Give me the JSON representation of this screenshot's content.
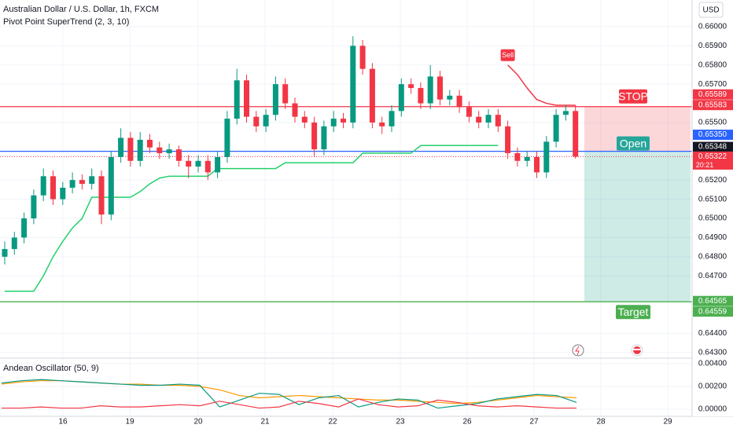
{
  "header": {
    "symbol": "Australian Dollar / U.S. Dollar, 1h, FXCM",
    "indicator": "Pivot Point SuperTrend (2, 3, 10)",
    "currency": "USD"
  },
  "chart_data": {
    "type": "candlestick",
    "up_color": "#089981",
    "down_color": "#f23645",
    "candles": [
      [
        0.648,
        0.6488,
        0.6476,
        0.6484
      ],
      [
        0.6484,
        0.6493,
        0.6481,
        0.649
      ],
      [
        0.649,
        0.6503,
        0.6487,
        0.65
      ],
      [
        0.65,
        0.6515,
        0.6497,
        0.6512
      ],
      [
        0.6512,
        0.6526,
        0.6509,
        0.6522
      ],
      [
        0.6522,
        0.6525,
        0.6507,
        0.651
      ],
      [
        0.651,
        0.6519,
        0.6507,
        0.6516
      ],
      [
        0.6516,
        0.6524,
        0.6513,
        0.652
      ],
      [
        0.652,
        0.6523,
        0.6515,
        0.6518
      ],
      [
        0.6518,
        0.6526,
        0.6515,
        0.6522
      ],
      [
        0.6522,
        0.6525,
        0.6497,
        0.6502
      ],
      [
        0.6502,
        0.6535,
        0.6499,
        0.6532
      ],
      [
        0.6532,
        0.6547,
        0.6529,
        0.6542
      ],
      [
        0.6542,
        0.6545,
        0.6527,
        0.653
      ],
      [
        0.653,
        0.6545,
        0.6527,
        0.6541
      ],
      [
        0.6541,
        0.6544,
        0.6534,
        0.6537
      ],
      [
        0.6537,
        0.654,
        0.6531,
        0.6534
      ],
      [
        0.6534,
        0.6539,
        0.6531,
        0.6536
      ],
      [
        0.6536,
        0.6538,
        0.6527,
        0.653
      ],
      [
        0.653,
        0.6533,
        0.6521,
        0.6527
      ],
      [
        0.6527,
        0.6533,
        0.6524,
        0.653
      ],
      [
        0.653,
        0.6533,
        0.652,
        0.6524
      ],
      [
        0.6524,
        0.6535,
        0.6521,
        0.6532
      ],
      [
        0.6532,
        0.6556,
        0.6529,
        0.6552
      ],
      [
        0.6552,
        0.6578,
        0.6549,
        0.6572
      ],
      [
        0.6572,
        0.6575,
        0.655,
        0.6553
      ],
      [
        0.6553,
        0.6556,
        0.6545,
        0.6548
      ],
      [
        0.6548,
        0.6557,
        0.6545,
        0.6554
      ],
      [
        0.6554,
        0.6574,
        0.6551,
        0.657
      ],
      [
        0.657,
        0.6573,
        0.6557,
        0.656
      ],
      [
        0.656,
        0.6563,
        0.655,
        0.6553
      ],
      [
        0.6553,
        0.6556,
        0.6547,
        0.655
      ],
      [
        0.655,
        0.6553,
        0.6532,
        0.6536
      ],
      [
        0.6536,
        0.6551,
        0.6533,
        0.6548
      ],
      [
        0.6548,
        0.6556,
        0.6545,
        0.6552
      ],
      [
        0.6552,
        0.6555,
        0.6547,
        0.655
      ],
      [
        0.655,
        0.6595,
        0.6547,
        0.659
      ],
      [
        0.659,
        0.6593,
        0.6575,
        0.6578
      ],
      [
        0.6578,
        0.6581,
        0.6547,
        0.655
      ],
      [
        0.655,
        0.6553,
        0.6544,
        0.6548
      ],
      [
        0.6548,
        0.6559,
        0.6545,
        0.6556
      ],
      [
        0.6556,
        0.6573,
        0.6553,
        0.657
      ],
      [
        0.657,
        0.6573,
        0.6565,
        0.6568
      ],
      [
        0.6568,
        0.6571,
        0.6557,
        0.656
      ],
      [
        0.656,
        0.658,
        0.6557,
        0.6574
      ],
      [
        0.6574,
        0.6577,
        0.6559,
        0.6562
      ],
      [
        0.6562,
        0.6567,
        0.6559,
        0.6564
      ],
      [
        0.6564,
        0.6567,
        0.6555,
        0.6558
      ],
      [
        0.6558,
        0.6561,
        0.655,
        0.6553
      ],
      [
        0.6553,
        0.6556,
        0.6547,
        0.655
      ],
      [
        0.655,
        0.6557,
        0.6547,
        0.6554
      ],
      [
        0.6554,
        0.6557,
        0.6545,
        0.6548
      ],
      [
        0.6548,
        0.6551,
        0.6531,
        0.6534
      ],
      [
        0.6534,
        0.6537,
        0.6527,
        0.653
      ],
      [
        0.653,
        0.6535,
        0.6527,
        0.6532
      ],
      [
        0.6532,
        0.6535,
        0.6521,
        0.6524
      ],
      [
        0.6524,
        0.6543,
        0.6521,
        0.654
      ],
      [
        0.654,
        0.6557,
        0.6537,
        0.6554
      ],
      [
        0.6554,
        0.6559,
        0.6551,
        0.6556
      ],
      [
        0.6556,
        0.6559,
        0.65312,
        0.65322
      ]
    ],
    "supertrend": {
      "up_color": "#22d06a",
      "down_color": "#f23645",
      "up": [
        0.6462,
        0.6462,
        0.6462,
        0.6462,
        0.647,
        0.648,
        0.6488,
        0.6495,
        0.65,
        0.6511,
        0.6511,
        0.6511,
        0.6511,
        0.6511,
        0.6514,
        0.6518,
        0.6521,
        0.6522,
        0.6522,
        0.6522,
        0.6522,
        0.6522,
        0.6526,
        0.6526,
        0.6526,
        0.6526,
        0.6526,
        0.6526,
        0.6526,
        0.6529,
        0.6529,
        0.6529,
        0.6529,
        0.6529,
        0.6529,
        0.6529,
        0.6529,
        0.6534,
        0.6534,
        0.6534,
        0.6534,
        0.6534,
        0.6534,
        0.6538,
        0.6538,
        0.6538,
        0.6538,
        0.6538,
        0.6538,
        0.6538,
        0.6538,
        0.6538,
        null,
        null,
        null,
        null,
        null,
        null,
        null,
        null
      ],
      "down": [
        null,
        null,
        null,
        null,
        null,
        null,
        null,
        null,
        null,
        null,
        null,
        null,
        null,
        null,
        null,
        null,
        null,
        null,
        null,
        null,
        null,
        null,
        null,
        null,
        null,
        null,
        null,
        null,
        null,
        null,
        null,
        null,
        null,
        null,
        null,
        null,
        null,
        null,
        null,
        null,
        null,
        null,
        null,
        null,
        null,
        null,
        null,
        null,
        null,
        null,
        null,
        null,
        0.658,
        0.6575,
        0.6568,
        0.6562,
        0.656,
        0.6559,
        0.6559,
        0.6559
      ]
    },
    "signal": "Sell",
    "ylim": [
      0.64275,
      0.66139
    ],
    "yticks": [
      {
        "value": 0.66,
        "label": "0.66000"
      },
      {
        "value": 0.659,
        "label": "0.65900"
      },
      {
        "value": 0.658,
        "label": "0.65800"
      },
      {
        "value": 0.657,
        "label": "0.65700"
      },
      {
        "value": 0.655,
        "label": "0.65500"
      },
      {
        "value": 0.652,
        "label": "0.65200"
      },
      {
        "value": 0.651,
        "label": "0.65100"
      },
      {
        "value": 0.65,
        "label": "0.65000"
      },
      {
        "value": 0.649,
        "label": "0.64900"
      },
      {
        "value": 0.648,
        "label": "0.64800"
      },
      {
        "value": 0.647,
        "label": "0.64700"
      },
      {
        "value": 0.644,
        "label": "0.64400"
      },
      {
        "value": 0.643,
        "label": "0.64300"
      }
    ],
    "xticks": [
      16,
      19,
      20,
      21,
      22,
      23,
      26,
      27,
      28,
      29
    ],
    "position": {
      "stop": {
        "value": 0.65583,
        "label": "0.65583",
        "name": "STOP",
        "color": "#f23645"
      },
      "open": {
        "value": 0.6535,
        "label": "0.65350",
        "name": "Open",
        "color": "#2962ff"
      },
      "target": {
        "value": 0.64565,
        "label": "0.64565",
        "name": "Target",
        "color": "#4caf50"
      }
    },
    "price_labels": [
      {
        "value": 0.65589,
        "label": "0.65589",
        "color": "#f23645"
      },
      {
        "value": 0.65348,
        "label": "0.65348",
        "color": "#131722"
      },
      {
        "value": 0.65322,
        "label": "0.65322",
        "color": "#f23645"
      },
      {
        "value": 0.64559,
        "label": "0.64559",
        "color": "#4caf50"
      }
    ],
    "countdown": "20:21"
  },
  "oscillator": {
    "title": "Andean Oscillator (50, 9)",
    "ylim": [
      -0.00062,
      0.00434
    ],
    "yticks": [
      {
        "value": 0.004,
        "label": "0.00400"
      },
      {
        "value": 0.002,
        "label": "0.00200"
      },
      {
        "value": 0,
        "label": "0.00000"
      }
    ],
    "series": [
      {
        "color": "#ff9800",
        "values": [
          0.0022,
          0.0024,
          0.0025,
          0.0025,
          0.0024,
          0.0023,
          0.0022,
          0.0022,
          0.0021,
          0.0021,
          0.002,
          0.0017,
          0.0012,
          0.001,
          0.0011,
          0.0012,
          0.0011,
          0.001,
          0.0009,
          0.0008,
          0.0008,
          0.0007,
          0.0006,
          0.0005,
          0.0006,
          0.0008,
          0.001,
          0.0012,
          0.0011,
          0.001
        ]
      },
      {
        "color": "#089981",
        "values": [
          0.0023,
          0.0025,
          0.0026,
          0.0025,
          0.0024,
          0.0023,
          0.0022,
          0.0021,
          0.0021,
          0.0022,
          0.0021,
          0.0002,
          0.0008,
          0.0014,
          0.0013,
          0.0004,
          0.001,
          0.0012,
          0.0002,
          0.0006,
          0.0009,
          0.0008,
          0.0001,
          0.0003,
          0.0005,
          0.0009,
          0.0011,
          0.0013,
          0.0012,
          0.0006
        ]
      },
      {
        "color": "#f23645",
        "values": [
          0.0001,
          0.0001,
          0.0002,
          0.0001,
          0.0001,
          0.0003,
          0.0002,
          0.0002,
          0.0003,
          0.0004,
          0.0003,
          0.0007,
          0.0004,
          0.0001,
          0.0002,
          0.0007,
          0.0005,
          0.0002,
          0.0009,
          0.0004,
          0.0002,
          0.0003,
          0.0008,
          0.0006,
          0.0003,
          0.0002,
          0.0003,
          0.0002,
          0.0001,
          0.0001
        ]
      }
    ]
  }
}
